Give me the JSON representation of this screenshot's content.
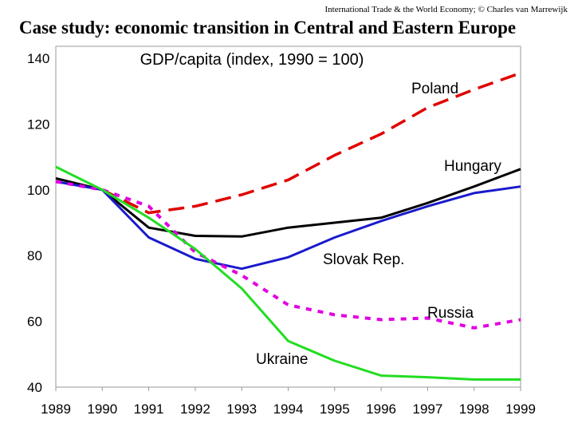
{
  "header": {
    "note": "International Trade & the World Economy;  © Charles van Marrewijk",
    "title": "Case study: economic transition in Central and Eastern Europe"
  },
  "chart_data": {
    "type": "line",
    "title": "GDP/capita (index, 1990 = 100)",
    "xlabel": "",
    "ylabel": "",
    "x": [
      1989,
      1990,
      1991,
      1992,
      1993,
      1994,
      1995,
      1996,
      1997,
      1998,
      1999
    ],
    "xlim": [
      1989,
      1999
    ],
    "ylim": [
      40,
      140
    ],
    "yticks": [
      40,
      60,
      80,
      100,
      120,
      140
    ],
    "series": [
      {
        "name": "Poland",
        "color": "#e00000",
        "style": "dashed",
        "values": [
          null,
          100,
          93,
          95,
          98.5,
          103,
          110.5,
          117,
          125,
          130.5,
          135.5
        ]
      },
      {
        "name": "Hungary",
        "color": "#000000",
        "style": "solid",
        "values": [
          103.5,
          100,
          88.5,
          86,
          85.8,
          88.5,
          90,
          91.5,
          96,
          101,
          106.3
        ]
      },
      {
        "name": "Slovak Rep.",
        "color": "#1a1acc",
        "style": "solid",
        "values": [
          102.5,
          100,
          85.5,
          79,
          76,
          79.5,
          85.5,
          90.5,
          95,
          99,
          101
        ]
      },
      {
        "name": "Russia",
        "color": "#e000e0",
        "style": "dotted",
        "values": [
          102.5,
          100,
          95,
          81,
          74,
          65,
          62,
          60.5,
          61,
          58,
          60.5
        ]
      },
      {
        "name": "Ukraine",
        "color": "#22dd22",
        "style": "solid",
        "values": [
          107,
          100,
          91.5,
          82,
          70,
          54,
          48,
          43.5,
          43,
          42.3,
          42.3
        ]
      }
    ]
  }
}
